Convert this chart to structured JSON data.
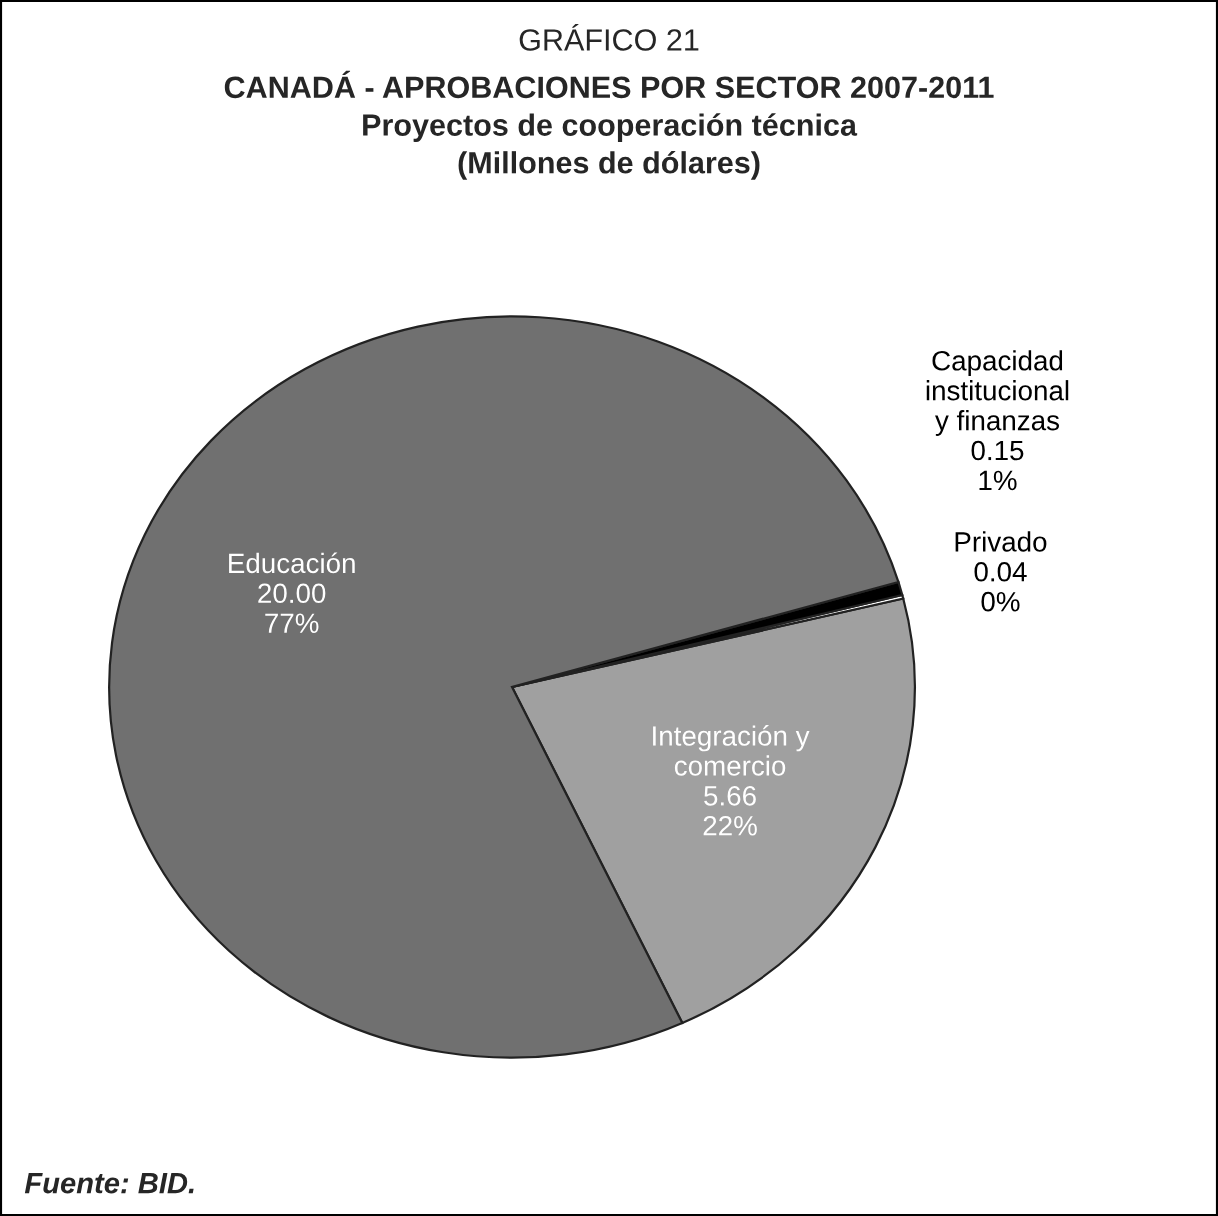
{
  "chart_data": {
    "type": "pie",
    "title": "GRÁFICO 21",
    "subtitle": "CANADÁ - APROBACIONES POR SECTOR 2007-2011\nProyectos de cooperación técnica\n(Millones de dólares)",
    "categories": [
      "Integración y\ncomercio",
      "Privado",
      "Capacidad\ninstitucional\ny finanzas",
      "Educación"
    ],
    "values": [
      5.66,
      0.04,
      0.15,
      20.0
    ],
    "value_labels": [
      "5.66\n22%",
      "0.04\n0%",
      "0.15\n1%",
      "20.00\n77%"
    ],
    "colors": [
      "#a0a0a0",
      "#ffffff",
      "#000000",
      "#707070"
    ],
    "annotations": [
      "Fuente: BID."
    ],
    "legend": false
  }
}
